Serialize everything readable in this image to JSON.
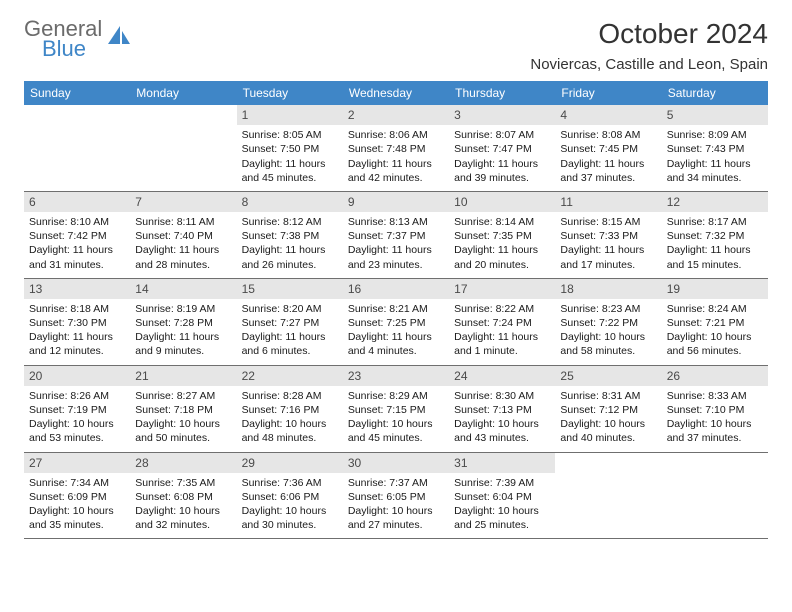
{
  "brand": {
    "top": "General",
    "bottom": "Blue"
  },
  "colors": {
    "header_bg": "#3f86c7",
    "header_text": "#ffffff",
    "daynum_bg": "#e6e6e6",
    "rule": "#6f6f6f",
    "text": "#1a1a1a",
    "brand_gray": "#6b6b6b",
    "brand_blue": "#3f86c7"
  },
  "title": "October 2024",
  "location": "Noviercas, Castille and Leon, Spain",
  "weekdays": [
    "Sunday",
    "Monday",
    "Tuesday",
    "Wednesday",
    "Thursday",
    "Friday",
    "Saturday"
  ],
  "weeks": [
    [
      null,
      null,
      {
        "d": "1",
        "sr": "Sunrise: 8:05 AM",
        "ss": "Sunset: 7:50 PM",
        "dl": "Daylight: 11 hours and 45 minutes."
      },
      {
        "d": "2",
        "sr": "Sunrise: 8:06 AM",
        "ss": "Sunset: 7:48 PM",
        "dl": "Daylight: 11 hours and 42 minutes."
      },
      {
        "d": "3",
        "sr": "Sunrise: 8:07 AM",
        "ss": "Sunset: 7:47 PM",
        "dl": "Daylight: 11 hours and 39 minutes."
      },
      {
        "d": "4",
        "sr": "Sunrise: 8:08 AM",
        "ss": "Sunset: 7:45 PM",
        "dl": "Daylight: 11 hours and 37 minutes."
      },
      {
        "d": "5",
        "sr": "Sunrise: 8:09 AM",
        "ss": "Sunset: 7:43 PM",
        "dl": "Daylight: 11 hours and 34 minutes."
      }
    ],
    [
      {
        "d": "6",
        "sr": "Sunrise: 8:10 AM",
        "ss": "Sunset: 7:42 PM",
        "dl": "Daylight: 11 hours and 31 minutes."
      },
      {
        "d": "7",
        "sr": "Sunrise: 8:11 AM",
        "ss": "Sunset: 7:40 PM",
        "dl": "Daylight: 11 hours and 28 minutes."
      },
      {
        "d": "8",
        "sr": "Sunrise: 8:12 AM",
        "ss": "Sunset: 7:38 PM",
        "dl": "Daylight: 11 hours and 26 minutes."
      },
      {
        "d": "9",
        "sr": "Sunrise: 8:13 AM",
        "ss": "Sunset: 7:37 PM",
        "dl": "Daylight: 11 hours and 23 minutes."
      },
      {
        "d": "10",
        "sr": "Sunrise: 8:14 AM",
        "ss": "Sunset: 7:35 PM",
        "dl": "Daylight: 11 hours and 20 minutes."
      },
      {
        "d": "11",
        "sr": "Sunrise: 8:15 AM",
        "ss": "Sunset: 7:33 PM",
        "dl": "Daylight: 11 hours and 17 minutes."
      },
      {
        "d": "12",
        "sr": "Sunrise: 8:17 AM",
        "ss": "Sunset: 7:32 PM",
        "dl": "Daylight: 11 hours and 15 minutes."
      }
    ],
    [
      {
        "d": "13",
        "sr": "Sunrise: 8:18 AM",
        "ss": "Sunset: 7:30 PM",
        "dl": "Daylight: 11 hours and 12 minutes."
      },
      {
        "d": "14",
        "sr": "Sunrise: 8:19 AM",
        "ss": "Sunset: 7:28 PM",
        "dl": "Daylight: 11 hours and 9 minutes."
      },
      {
        "d": "15",
        "sr": "Sunrise: 8:20 AM",
        "ss": "Sunset: 7:27 PM",
        "dl": "Daylight: 11 hours and 6 minutes."
      },
      {
        "d": "16",
        "sr": "Sunrise: 8:21 AM",
        "ss": "Sunset: 7:25 PM",
        "dl": "Daylight: 11 hours and 4 minutes."
      },
      {
        "d": "17",
        "sr": "Sunrise: 8:22 AM",
        "ss": "Sunset: 7:24 PM",
        "dl": "Daylight: 11 hours and 1 minute."
      },
      {
        "d": "18",
        "sr": "Sunrise: 8:23 AM",
        "ss": "Sunset: 7:22 PM",
        "dl": "Daylight: 10 hours and 58 minutes."
      },
      {
        "d": "19",
        "sr": "Sunrise: 8:24 AM",
        "ss": "Sunset: 7:21 PM",
        "dl": "Daylight: 10 hours and 56 minutes."
      }
    ],
    [
      {
        "d": "20",
        "sr": "Sunrise: 8:26 AM",
        "ss": "Sunset: 7:19 PM",
        "dl": "Daylight: 10 hours and 53 minutes."
      },
      {
        "d": "21",
        "sr": "Sunrise: 8:27 AM",
        "ss": "Sunset: 7:18 PM",
        "dl": "Daylight: 10 hours and 50 minutes."
      },
      {
        "d": "22",
        "sr": "Sunrise: 8:28 AM",
        "ss": "Sunset: 7:16 PM",
        "dl": "Daylight: 10 hours and 48 minutes."
      },
      {
        "d": "23",
        "sr": "Sunrise: 8:29 AM",
        "ss": "Sunset: 7:15 PM",
        "dl": "Daylight: 10 hours and 45 minutes."
      },
      {
        "d": "24",
        "sr": "Sunrise: 8:30 AM",
        "ss": "Sunset: 7:13 PM",
        "dl": "Daylight: 10 hours and 43 minutes."
      },
      {
        "d": "25",
        "sr": "Sunrise: 8:31 AM",
        "ss": "Sunset: 7:12 PM",
        "dl": "Daylight: 10 hours and 40 minutes."
      },
      {
        "d": "26",
        "sr": "Sunrise: 8:33 AM",
        "ss": "Sunset: 7:10 PM",
        "dl": "Daylight: 10 hours and 37 minutes."
      }
    ],
    [
      {
        "d": "27",
        "sr": "Sunrise: 7:34 AM",
        "ss": "Sunset: 6:09 PM",
        "dl": "Daylight: 10 hours and 35 minutes."
      },
      {
        "d": "28",
        "sr": "Sunrise: 7:35 AM",
        "ss": "Sunset: 6:08 PM",
        "dl": "Daylight: 10 hours and 32 minutes."
      },
      {
        "d": "29",
        "sr": "Sunrise: 7:36 AM",
        "ss": "Sunset: 6:06 PM",
        "dl": "Daylight: 10 hours and 30 minutes."
      },
      {
        "d": "30",
        "sr": "Sunrise: 7:37 AM",
        "ss": "Sunset: 6:05 PM",
        "dl": "Daylight: 10 hours and 27 minutes."
      },
      {
        "d": "31",
        "sr": "Sunrise: 7:39 AM",
        "ss": "Sunset: 6:04 PM",
        "dl": "Daylight: 10 hours and 25 minutes."
      },
      null,
      null
    ]
  ]
}
